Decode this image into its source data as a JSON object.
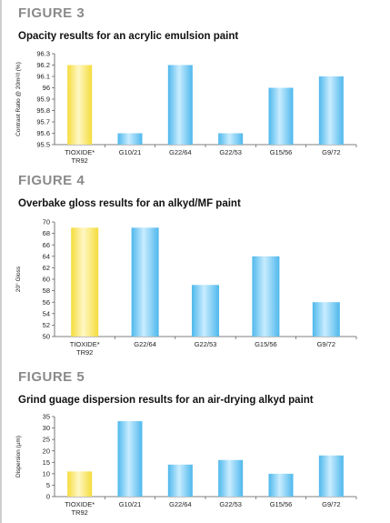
{
  "figures": [
    {
      "figure_label": "FIGURE 3",
      "title": "Opacity results for an acrylic emulsion paint"
    },
    {
      "figure_label": "FIGURE 4",
      "title": "Overbake gloss results for an alkyd/MF paint"
    },
    {
      "figure_label": "FIGURE 5",
      "title": "Grind guage dispersion results for an air-drying alkyd paint"
    }
  ],
  "chart_data": [
    {
      "type": "bar",
      "title": "Opacity results for an acrylic emulsion paint",
      "ylabel": "Contrast Ratio @ 20m²/l (%)",
      "xlabel": "",
      "categories": [
        [
          "TIOXIDE*",
          "TR92"
        ],
        [
          "G10/21"
        ],
        [
          "G22/64"
        ],
        [
          "G22/53"
        ],
        [
          "G15/56"
        ],
        [
          "G9/72"
        ]
      ],
      "values": [
        96.2,
        95.6,
        96.2,
        95.6,
        96.0,
        96.1
      ],
      "highlight_index": 0,
      "ylim": [
        95.5,
        96.3
      ],
      "yticks": [
        "96.3",
        "96.2",
        "96.1",
        "96",
        "95.9",
        "95.8",
        "95.7",
        "95.6",
        "95.5"
      ],
      "grid": false,
      "colors": {
        "highlight": "#f5dc3c",
        "bar": "#4fb8ec"
      }
    },
    {
      "type": "bar",
      "title": "Overbake gloss results for an alkyd/MF paint",
      "ylabel": "20° Gloss",
      "xlabel": "",
      "categories": [
        [
          "TIOXIDE*",
          "TR92"
        ],
        [
          "G22/64"
        ],
        [
          "G22/53"
        ],
        [
          "G15/56"
        ],
        [
          "G9/72"
        ]
      ],
      "values": [
        69,
        69,
        59,
        64,
        56
      ],
      "highlight_index": 0,
      "ylim": [
        50,
        70
      ],
      "yticks": [
        "70",
        "68",
        "66",
        "64",
        "62",
        "60",
        "58",
        "56",
        "54",
        "52",
        "50"
      ],
      "grid": false,
      "colors": {
        "highlight": "#f5dc3c",
        "bar": "#4fb8ec"
      }
    },
    {
      "type": "bar",
      "title": "Grind guage dispersion results for an air-drying alkyd paint",
      "ylabel": "Dispersion (µm)",
      "xlabel": "",
      "categories": [
        [
          "TIOXIDE*",
          "TR92"
        ],
        [
          "G10/21"
        ],
        [
          "G22/64"
        ],
        [
          "G22/53"
        ],
        [
          "G15/56"
        ],
        [
          "G9/72"
        ]
      ],
      "values": [
        11,
        33,
        14,
        16,
        10,
        18
      ],
      "highlight_index": 0,
      "ylim": [
        0,
        35
      ],
      "yticks": [
        "35",
        "30",
        "25",
        "20",
        "15",
        "10",
        "5",
        "0"
      ],
      "grid": false,
      "colors": {
        "highlight": "#f5dc3c",
        "bar": "#4fb8ec"
      }
    }
  ]
}
